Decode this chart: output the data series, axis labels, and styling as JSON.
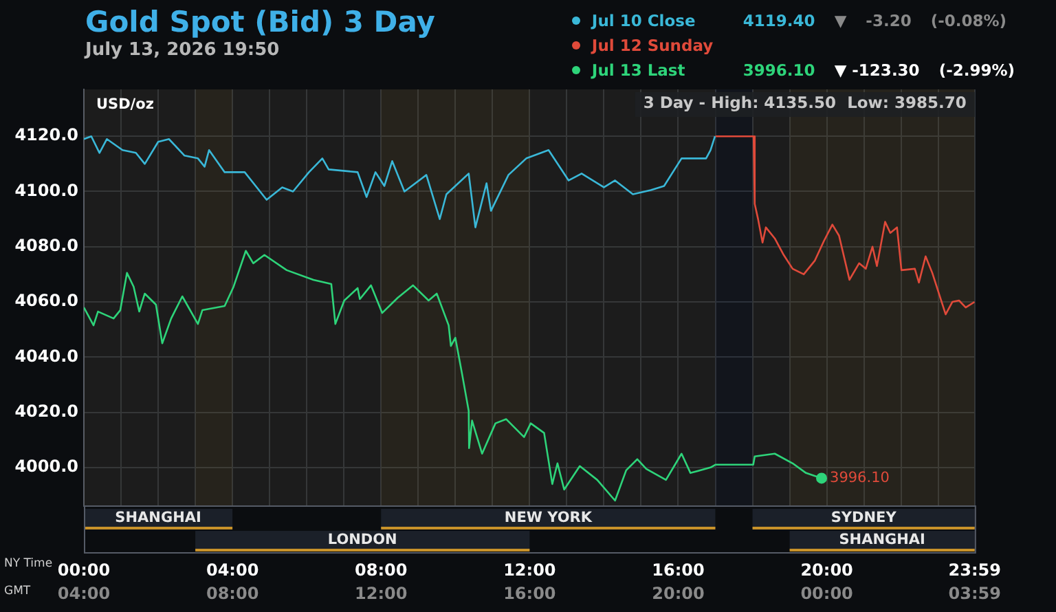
{
  "chart_data": {
    "type": "line",
    "title": "Gold Spot (Bid) 3 Day",
    "subtitle": "July 13, 2026 19:50",
    "ylabel": "USD/oz",
    "xlabel": "NY Time",
    "x2label": "GMT",
    "xlim": [
      0,
      23.983
    ],
    "xticks": [
      {
        "value": 0,
        "label": "00:00"
      },
      {
        "value": 1,
        "label": null
      },
      {
        "value": 2,
        "label": null
      },
      {
        "value": 3,
        "label": null
      },
      {
        "value": 4,
        "label": "04:00"
      },
      {
        "value": 5,
        "label": null
      },
      {
        "value": 6,
        "label": null
      },
      {
        "value": 7,
        "label": null
      },
      {
        "value": 8,
        "label": "08:00"
      },
      {
        "value": 9,
        "label": null
      },
      {
        "value": 10,
        "label": null
      },
      {
        "value": 11,
        "label": null
      },
      {
        "value": 12,
        "label": "12:00"
      },
      {
        "value": 13,
        "label": null
      },
      {
        "value": 14,
        "label": null
      },
      {
        "value": 15,
        "label": null
      },
      {
        "value": 16,
        "label": "16:00"
      },
      {
        "value": 17,
        "label": null
      },
      {
        "value": 18,
        "label": null
      },
      {
        "value": 19,
        "label": null
      },
      {
        "value": 20,
        "label": "20:00"
      },
      {
        "value": 21,
        "label": null
      },
      {
        "value": 22,
        "label": null
      },
      {
        "value": 23,
        "label": null
      },
      {
        "value": 23.983,
        "label": "23:59"
      }
    ],
    "x2lim": [
      "2026-07-13T04:00",
      "2026-07-14T03:59"
    ],
    "x2ticks": [
      {
        "value": "2026-07-13T04:00",
        "label": "04:00"
      },
      {
        "value": "2026-07-13T08:00",
        "label": "08:00"
      },
      {
        "value": "2026-07-13T12:00",
        "label": "12:00"
      },
      {
        "value": "2026-07-13T16:00",
        "label": "16:00"
      },
      {
        "value": "2026-07-13T20:00",
        "label": "20:00"
      },
      {
        "value": "2026-07-14T00:00",
        "label": "00:00"
      },
      {
        "value": "2026-07-14T03:59",
        "label": "03:59"
      }
    ],
    "ylim": [
      3986,
      4137
    ],
    "yticks": [
      {
        "value": 4000,
        "label": "4000.0"
      },
      {
        "value": 4020,
        "label": "4020.0"
      },
      {
        "value": 4040,
        "label": "4040.0"
      },
      {
        "value": 4060,
        "label": "4060.0"
      },
      {
        "value": 4080,
        "label": "4080.0"
      },
      {
        "value": 4100,
        "label": "4100.0"
      },
      {
        "value": 4120,
        "label": "4120.0"
      }
    ],
    "grid": true,
    "legend": "top right",
    "marker": "none",
    "line_style": "solid",
    "series": [
      {
        "name": "Jul 10 Close",
        "color": "#3ab8d8",
        "x": [
          0,
          0.2,
          0.42,
          0.62,
          1.04,
          1.4,
          1.64,
          2.0,
          2.29,
          2.71,
          3.07,
          3.25,
          3.37,
          3.79,
          4.33,
          4.92,
          5.34,
          5.63,
          6.06,
          6.42,
          6.59,
          7.37,
          7.61,
          7.85,
          8.09,
          8.3,
          8.63,
          9.22,
          9.58,
          9.76,
          10.36,
          10.54,
          10.84,
          10.96,
          11.43,
          11.91,
          12.51,
          13.05,
          13.4,
          14.0,
          14.3,
          14.78,
          15.26,
          15.62,
          16.09,
          16.75,
          16.87,
          16.99
        ],
        "values": [
          4119,
          4120,
          4114,
          4119,
          4115,
          4114,
          4110,
          4118,
          4119,
          4113,
          4112,
          4109,
          4115,
          4107,
          4107,
          4097,
          4101.5,
          4100,
          4107,
          4112,
          4108,
          4107,
          4098,
          4107,
          4102,
          4111,
          4100,
          4106,
          4090,
          4099,
          4106.5,
          4087,
          4103,
          4093,
          4106,
          4112,
          4115,
          4104,
          4106.5,
          4101.5,
          4104,
          4099,
          4100.5,
          4102,
          4112,
          4112,
          4115,
          4120
        ]
      },
      {
        "name": "Jul 12 Sunday",
        "color": "#e04a3a",
        "x": [
          17.0,
          18.03,
          18.06,
          18.15,
          18.27,
          18.36,
          18.6,
          18.84,
          19.08,
          19.38,
          19.68,
          19.92,
          20.15,
          20.33,
          20.61,
          20.87,
          21.05,
          21.23,
          21.35,
          21.57,
          21.71,
          21.89,
          22.01,
          22.37,
          22.48,
          22.66,
          22.84,
          23.2,
          23.38,
          23.56,
          23.74,
          23.98
        ],
        "values": [
          4120,
          4120,
          4095.5,
          4090,
          4081.5,
          4087,
          4083,
          4077,
          4072,
          4070,
          4075,
          4082,
          4088,
          4084,
          4068,
          4074,
          4072,
          4080,
          4073,
          4089,
          4085,
          4087,
          4071.5,
          4072,
          4067,
          4076.5,
          4070.5,
          4055.5,
          4060,
          4060.5,
          4058,
          4060
        ]
      },
      {
        "name": "Jul 13 Last",
        "color": "#2ed47a",
        "x": [
          0,
          0.26,
          0.38,
          0.8,
          0.98,
          1.16,
          1.34,
          1.49,
          1.64,
          1.94,
          2.11,
          2.35,
          2.65,
          3.07,
          3.19,
          3.79,
          4.03,
          4.36,
          4.56,
          4.86,
          5.46,
          6.18,
          6.66,
          6.77,
          7.01,
          7.37,
          7.43,
          7.73,
          8.03,
          8.45,
          8.86,
          9.28,
          9.5,
          9.82,
          9.88,
          10.0,
          10.18,
          10.36,
          10.37,
          10.45,
          10.72,
          11.08,
          11.37,
          11.85,
          12.03,
          12.39,
          12.61,
          12.75,
          12.93,
          13.35,
          13.82,
          14.3,
          14.6,
          14.9,
          15.14,
          15.67,
          16.09,
          16.33,
          16.87,
          17.0,
          18.02,
          18.06,
          18.6,
          19.08,
          19.44,
          19.86
        ],
        "values": [
          4058,
          4051.5,
          4056.5,
          4054,
          4057,
          4070.5,
          4065.5,
          4056.5,
          4063,
          4059,
          4045,
          4054,
          4062,
          4052,
          4057,
          4058.5,
          4065.5,
          4078.5,
          4074,
          4077,
          4071.5,
          4068,
          4066.5,
          4052,
          4060.5,
          4065,
          4061,
          4066,
          4056,
          4061.5,
          4066,
          4060.5,
          4063,
          4051.5,
          4044,
          4047,
          4034,
          4020.5,
          4007,
          4017,
          4005,
          4016,
          4017.5,
          4011,
          4016,
          4012.5,
          3994,
          4001.5,
          3992,
          4000.5,
          3995.5,
          3988,
          3999,
          4003,
          3999.5,
          3995.5,
          4005,
          3998,
          4000,
          4001,
          4001,
          4004,
          4005,
          4001.5,
          3998,
          3996.1
        ]
      }
    ],
    "bands": [
      {
        "axis": "x",
        "from": 0,
        "to": 4,
        "label": "SHANGHAI",
        "color": "#c8922a"
      },
      {
        "axis": "x",
        "from": 3,
        "to": 12,
        "label": "LONDON",
        "color": "#c8922a"
      },
      {
        "axis": "x",
        "from": 8,
        "to": 17,
        "label": "NEW YORK",
        "color": "#c8922a"
      },
      {
        "axis": "x",
        "from": 18,
        "to": 23.983,
        "label": "SYDNEY",
        "color": "#c8922a"
      },
      {
        "axis": "x",
        "from": 19,
        "to": 23.983,
        "label": "SHANGHAI",
        "color": "#c8922a"
      }
    ],
    "annotations": [
      "4119.40",
      "▼",
      "-3.20",
      "(-0.08%)",
      "3996.10",
      "▼ -123.30",
      "(-2.99%)",
      "3 Day - High: 4135.50  Low: 3985.70",
      {
        "text": "3996.10",
        "x": 19.86,
        "y": 3996.1
      }
    ]
  }
}
